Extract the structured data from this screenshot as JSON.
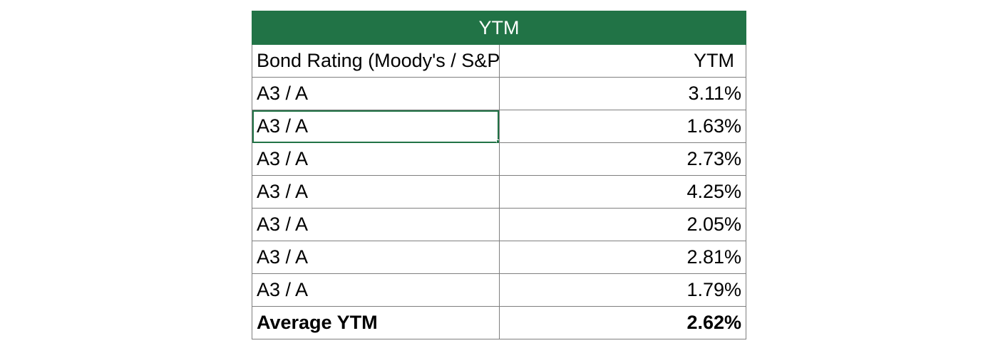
{
  "colors": {
    "title_bg": "#217346",
    "title_text": "#ffffff",
    "grid": "#7f7f7f",
    "selection": "#217346"
  },
  "table": {
    "title": "YTM",
    "headers": {
      "rating": "Bond Rating (Moody's / S&P)",
      "ytm": "YTM"
    },
    "rows": [
      {
        "rating": "A3 / A",
        "ytm": "3.11%"
      },
      {
        "rating": "A3 / A",
        "ytm": "1.63%"
      },
      {
        "rating": "A3 / A",
        "ytm": "2.73%"
      },
      {
        "rating": "A3 / A",
        "ytm": "4.25%"
      },
      {
        "rating": "A3 / A",
        "ytm": "2.05%"
      },
      {
        "rating": "A3 / A",
        "ytm": "2.81%"
      },
      {
        "rating": "A3 / A",
        "ytm": "1.79%"
      }
    ],
    "total": {
      "label": "Average YTM",
      "value": "2.62%"
    },
    "selected_row": 1
  }
}
